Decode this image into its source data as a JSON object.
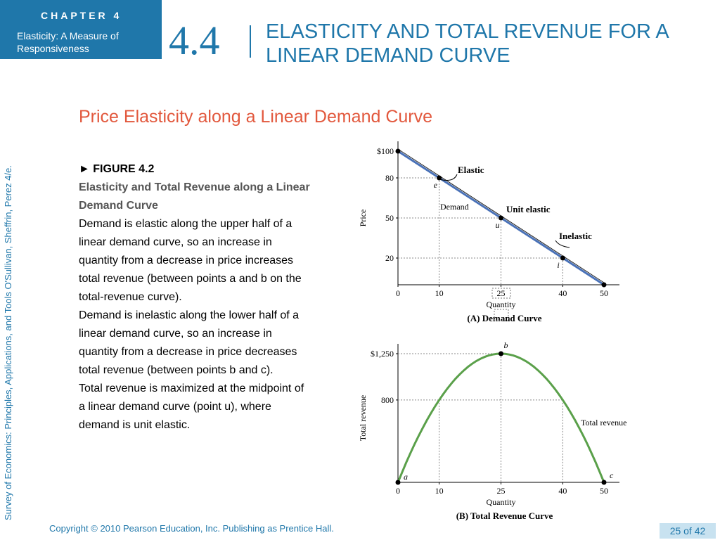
{
  "header": {
    "chapter_label": "CHAPTER 4",
    "chapter_subtitle": "Elasticity: A Measure of Responsiveness",
    "section_number": "4.4",
    "section_title": "ELASTICITY AND TOTAL REVENUE FOR A LINEAR DEMAND CURVE"
  },
  "sidebar_text": "Survey of Economics: Principles, Applications, and Tools    O'Sullivan, Sheffrin, Perez    4/e.",
  "slide_heading": "Price Elasticity along a Linear Demand Curve",
  "figure": {
    "label": "► FIGURE 4.2",
    "title": "Elasticity and Total Revenue along a Linear Demand Curve",
    "para1": "Demand is elastic along the upper half of a linear demand curve, so an increase in quantity from a decrease in price increases total revenue (between points a and b on the total-revenue curve).",
    "para2": "Demand is inelastic along the lower half of a linear demand curve, so an increase in quantity from a decrease in price decreases total revenue (between points b and c).",
    "para3": "Total revenue is maximized at the midpoint of a linear demand curve (point u), where demand is unit elastic."
  },
  "footer": {
    "copyright": "Copyright © 2010  Pearson Education, Inc. Publishing as Prentice Hall.",
    "page": "25 of 42"
  },
  "colors": {
    "accent": "#1f77aa",
    "heading": "#e2583d",
    "demand_line": "#4a72b8",
    "revenue_curve": "#5aa04a"
  },
  "chart_data": [
    {
      "type": "line",
      "title": "(A) Demand Curve",
      "xlabel": "Quantity",
      "ylabel": "Price",
      "xlim": [
        0,
        50
      ],
      "ylim": [
        0,
        100
      ],
      "x_ticks": [
        "0",
        "10",
        "25",
        "40",
        "50"
      ],
      "y_ticks": [
        "$100",
        "80",
        "50",
        "20"
      ],
      "series": [
        {
          "name": "Demand",
          "x": [
            0,
            50
          ],
          "y": [
            100,
            0
          ]
        }
      ],
      "points": [
        {
          "label": "",
          "x": 0,
          "y": 100
        },
        {
          "label": "e",
          "x": 10,
          "y": 80
        },
        {
          "label": "u",
          "x": 25,
          "y": 50
        },
        {
          "label": "i",
          "x": 40,
          "y": 20
        },
        {
          "label": "",
          "x": 50,
          "y": 0
        }
      ],
      "annotations": [
        "Elastic",
        "Unit elastic",
        "Inelastic",
        "Demand"
      ]
    },
    {
      "type": "line",
      "title": "(B) Total Revenue Curve",
      "xlabel": "Quantity",
      "ylabel": "Total revenue",
      "xlim": [
        0,
        50
      ],
      "ylim": [
        0,
        1400
      ],
      "x_ticks": [
        "0",
        "10",
        "25",
        "40",
        "50"
      ],
      "y_ticks": [
        "$1,250",
        "800"
      ],
      "series": [
        {
          "name": "Total revenue",
          "x": [
            0,
            5,
            10,
            15,
            20,
            25,
            30,
            35,
            40,
            45,
            50
          ],
          "y": [
            0,
            475,
            800,
            1050,
            1200,
            1250,
            1200,
            1050,
            800,
            475,
            0
          ]
        }
      ],
      "points": [
        {
          "label": "a",
          "x": 0,
          "y": 0
        },
        {
          "label": "b",
          "x": 25,
          "y": 1250
        },
        {
          "label": "c",
          "x": 50,
          "y": 0
        }
      ]
    }
  ]
}
